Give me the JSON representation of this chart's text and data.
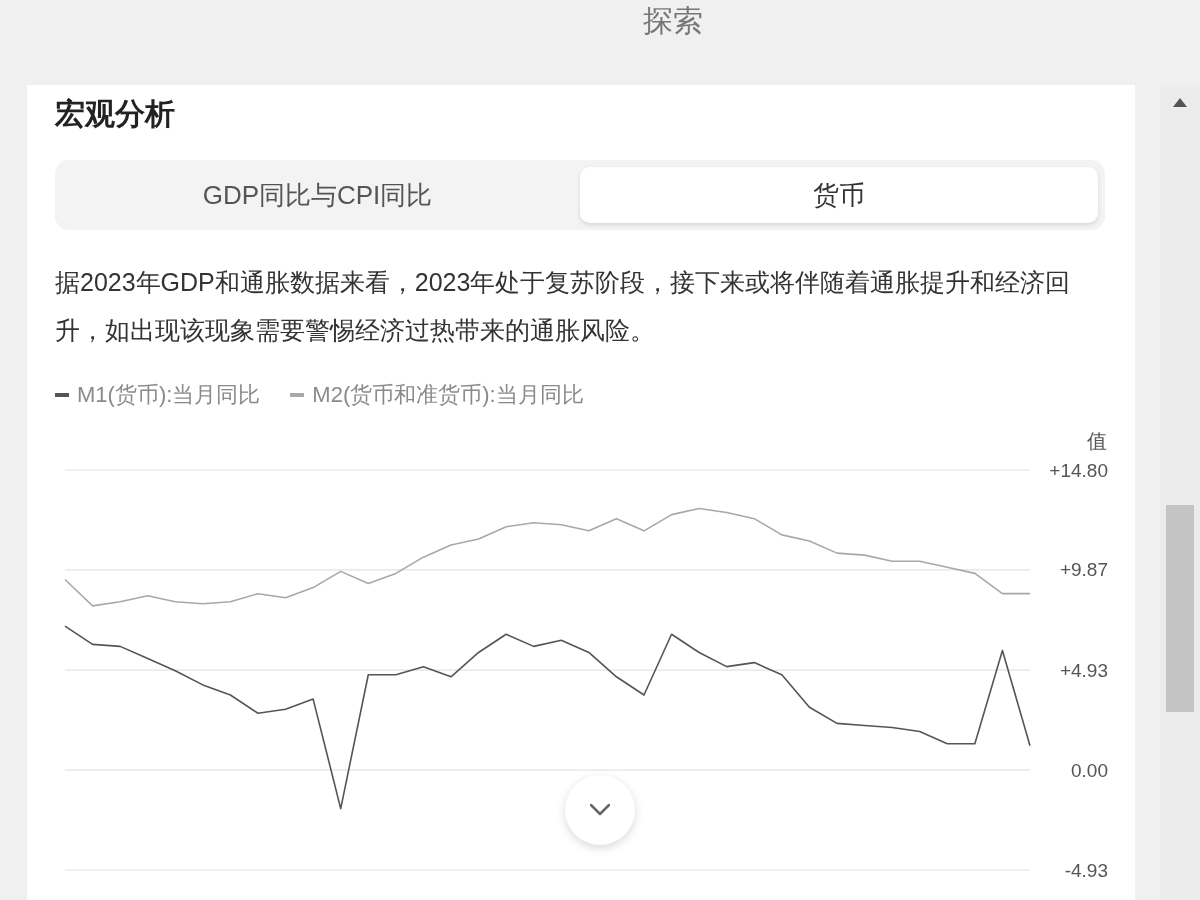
{
  "chart_data": {
    "type": "line",
    "title": "宏观分析",
    "subtitle": "据2023年GDP和通胀数据来看，2023年处于复苏阶段，接下来或将伴随着通胀提升和经济回升，如出现该现象需要警惕经济过热带来的通胀风险。",
    "ylabel": "值",
    "annotations": [
      "探索",
      "GDP同比与CPI同比",
      "货币"
    ],
    "categories": [
      null,
      null,
      null,
      null,
      null,
      null,
      null,
      null,
      null,
      null,
      null,
      null,
      null,
      null,
      null,
      null,
      null,
      null,
      null,
      null,
      null,
      null,
      null,
      null,
      null,
      null,
      null,
      null,
      null,
      null,
      null,
      null,
      null,
      null,
      null,
      null
    ],
    "series": [
      {
        "name": "M1(货币):当月同比",
        "color": "#555555",
        "values": [
          7.1,
          6.2,
          6.1,
          5.5,
          4.9,
          4.2,
          3.7,
          2.8,
          3.0,
          3.5,
          -1.9,
          4.7,
          4.7,
          5.1,
          4.6,
          5.8,
          6.7,
          6.1,
          6.4,
          5.8,
          4.6,
          3.7,
          6.7,
          5.8,
          5.1,
          5.3,
          4.7,
          3.1,
          2.3,
          2.2,
          2.1,
          1.9,
          1.3,
          1.3,
          5.9,
          1.2
        ]
      },
      {
        "name": "M2(货币和准货币):当月同比",
        "color": "#a8a8a8",
        "values": [
          9.4,
          8.1,
          8.3,
          8.6,
          8.3,
          8.2,
          8.3,
          8.7,
          8.5,
          9.0,
          9.8,
          9.2,
          9.7,
          10.5,
          11.1,
          11.4,
          12.0,
          12.2,
          12.1,
          11.8,
          12.4,
          11.8,
          12.6,
          12.9,
          12.7,
          12.4,
          11.6,
          11.3,
          10.7,
          10.6,
          10.3,
          10.3,
          10.0,
          9.7,
          8.7,
          8.7
        ]
      }
    ],
    "ylim": [
      -4.93,
      14.8
    ],
    "yticks": [
      {
        "value": 14.8,
        "label": "+14.80"
      },
      {
        "value": 9.87,
        "label": "+9.87"
      },
      {
        "value": 4.93,
        "label": "+4.93"
      },
      {
        "value": 0,
        "label": "0.00"
      },
      {
        "value": -4.93,
        "label": "-4.93"
      }
    ],
    "grid": "y",
    "legend": "top left",
    "tick_labels": "y",
    "line_style": "solid"
  }
}
